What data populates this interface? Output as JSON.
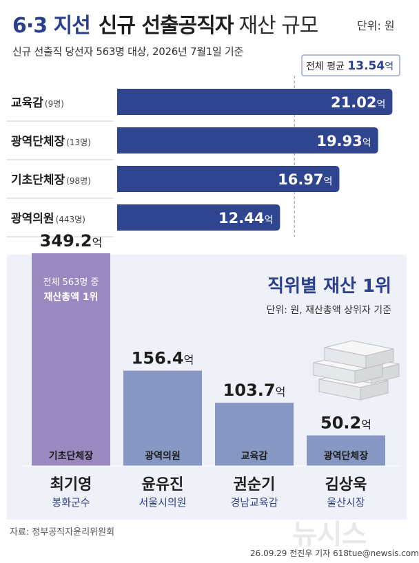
{
  "header": {
    "title_part1": "6·3 지선",
    "title_part2": "신규 선출공직자",
    "title_part3": "재산 규모",
    "unit": "단위: 원",
    "subtitle": "신규 선출직 당선자 563명 대상, 2026년 7월1일 기준"
  },
  "colors": {
    "primary_blue": "#2f4590",
    "light_blue": "#8797c3",
    "purple": "#9a89c0",
    "rule": "#c6cde0",
    "text_blue": "#2b3f8c",
    "avg_line": "#9aa6cc"
  },
  "chart_data": [
    {
      "type": "bar",
      "orientation": "horizontal",
      "categories": [
        "교육감",
        "광역단체장",
        "기초단체장",
        "광역의원"
      ],
      "counts": [
        "(9명)",
        "(13명)",
        "(98명)",
        "(443명)"
      ],
      "values": [
        21.02,
        19.93,
        16.97,
        12.44
      ],
      "value_labels": [
        "21.02",
        "19.93",
        "16.97",
        "12.44"
      ],
      "unit_suffix": "억",
      "average": {
        "label": "전체 평균",
        "value": 13.54,
        "value_label": "13.54",
        "unit_suffix": "억"
      }
    },
    {
      "type": "bar",
      "orientation": "vertical",
      "title": "직위별 재산 1위",
      "subtitle": "단위: 원, 재산총액 상위자 기준",
      "categories": [
        "기초단체장",
        "광역의원",
        "교육감",
        "광역단체장"
      ],
      "names": [
        "최기영",
        "윤유진",
        "권순기",
        "김상욱"
      ],
      "affiliations": [
        "봉화군수",
        "서울시의원",
        "경남교육감",
        "울산시장"
      ],
      "values": [
        349.2,
        156.4,
        103.7,
        50.2
      ],
      "value_labels": [
        "349.2",
        "156.4",
        "103.7",
        "50.2"
      ],
      "unit_suffix": "억",
      "top_note_line1": "전체 563명 중",
      "top_note_line2": "재산총액 1위"
    }
  ],
  "footer": {
    "source": "자료: 정부공직자윤리위원회",
    "credit": "26.09.29 전진우 기자 618tue@newsis.com",
    "watermark": "뉴시스"
  }
}
